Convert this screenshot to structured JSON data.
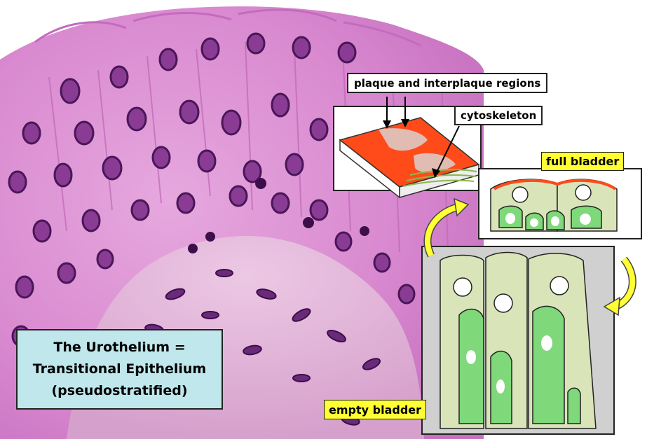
{
  "labels": {
    "plaque": "plaque and interplaque regions",
    "cytoskeleton": "cytoskeleton",
    "full_bladder": "full bladder",
    "empty_bladder": "empty bladder"
  },
  "title_box": {
    "line1": "The Urothelium =",
    "line2": "Transitional Epithelium",
    "line3": "(pseudostratified)"
  },
  "colors": {
    "tissue_pink": "#d98ad0",
    "nucleus_purple": "#5a1f6b",
    "cell_light_green": "#d9e4b8",
    "cell_green": "#7fd87a",
    "plaque_red": "#ff4a1a",
    "label_yellow": "#ffff33",
    "title_box_blue": "#bfe7ec"
  }
}
